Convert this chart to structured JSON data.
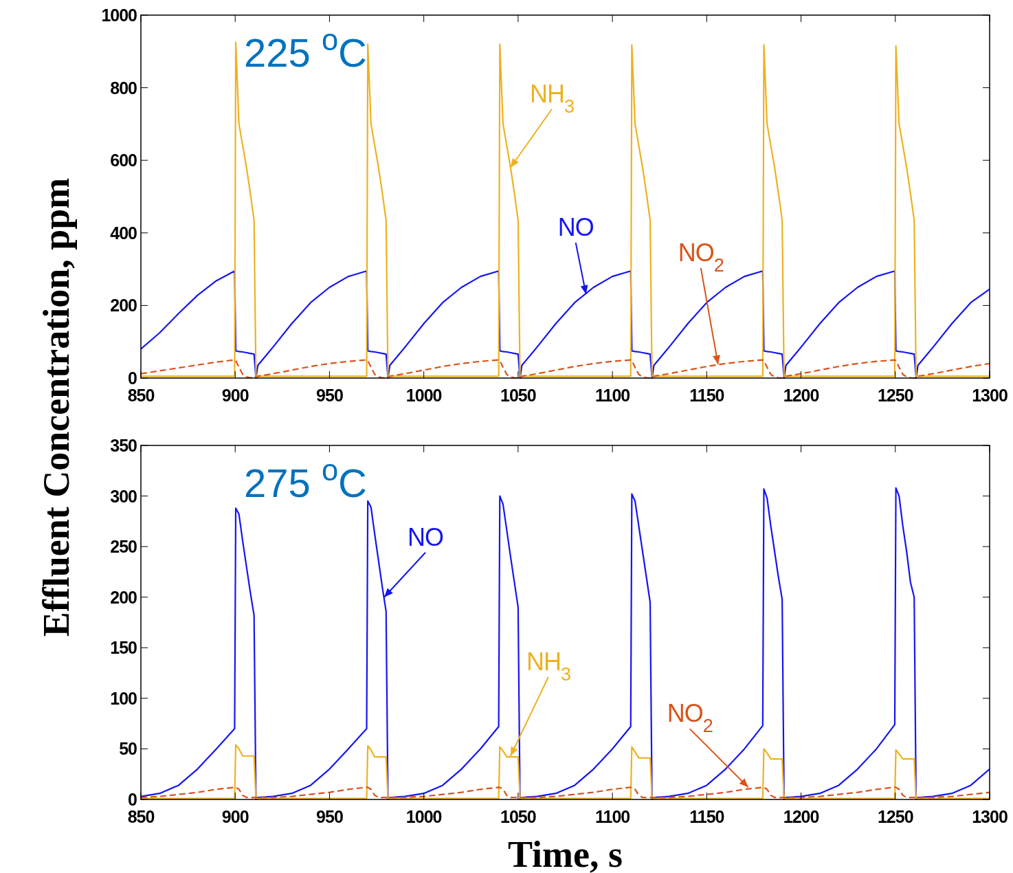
{
  "chart_data": [
    {
      "type": "line",
      "ylabel": "Effluent Concentration, ppm",
      "xlim": [
        850,
        1300
      ],
      "xticks": [
        850,
        900,
        950,
        1000,
        1050,
        1100,
        1150,
        1200,
        1250,
        1300
      ],
      "ylim": [
        0,
        1000
      ],
      "yticks": [
        0,
        200,
        400,
        600,
        800,
        1000
      ],
      "grid": false,
      "x": [
        850,
        860,
        870,
        880,
        890,
        899.7,
        900.3,
        902,
        904,
        906,
        908,
        910,
        911,
        912,
        920,
        930,
        940,
        950,
        960,
        969.7,
        970.3,
        972,
        974,
        976,
        978,
        980,
        981,
        982,
        990,
        1000,
        1010,
        1020,
        1030,
        1039.7,
        1040.3,
        1042,
        1044,
        1046,
        1048,
        1050,
        1051,
        1052,
        1060,
        1070,
        1080,
        1090,
        1100,
        1109.7,
        1110.3,
        1112,
        1114,
        1116,
        1118,
        1120,
        1121,
        1122,
        1130,
        1140,
        1150,
        1160,
        1170,
        1179.7,
        1180.3,
        1182,
        1184,
        1186,
        1188,
        1190,
        1191,
        1192,
        1200,
        1210,
        1220,
        1230,
        1240,
        1249.7,
        1250.3,
        1252,
        1254,
        1256,
        1258,
        1260,
        1261,
        1262,
        1270,
        1280,
        1290,
        1300
      ],
      "series": [
        {
          "color": "#1515f0",
          "line_style": "solid",
          "values": [
            80,
            125,
            178,
            228,
            268,
            295,
            75,
            73,
            72,
            70,
            68,
            66,
            0,
            35,
            85,
            150,
            208,
            250,
            280,
            295,
            75,
            73,
            72,
            70,
            68,
            66,
            0,
            35,
            85,
            150,
            208,
            250,
            280,
            295,
            75,
            73,
            72,
            70,
            68,
            66,
            0,
            35,
            85,
            150,
            208,
            250,
            280,
            295,
            75,
            73,
            72,
            70,
            68,
            66,
            0,
            35,
            85,
            150,
            208,
            250,
            280,
            295,
            75,
            73,
            72,
            70,
            68,
            66,
            0,
            35,
            85,
            150,
            208,
            250,
            280,
            295,
            75,
            73,
            72,
            70,
            68,
            66,
            0,
            35,
            85,
            150,
            208,
            245
          ]
        },
        {
          "color": "#edb120",
          "line_style": "solid",
          "values": [
            5,
            5,
            5,
            5,
            5,
            5,
            925,
            700,
            640,
            580,
            510,
            435,
            5,
            5,
            5,
            5,
            5,
            5,
            5,
            5,
            920,
            700,
            640,
            580,
            510,
            435,
            5,
            5,
            5,
            5,
            5,
            5,
            5,
            5,
            920,
            700,
            640,
            580,
            510,
            435,
            5,
            5,
            5,
            5,
            5,
            5,
            5,
            5,
            918,
            700,
            640,
            580,
            510,
            435,
            5,
            5,
            5,
            5,
            5,
            5,
            5,
            5,
            918,
            700,
            640,
            580,
            510,
            435,
            5,
            5,
            5,
            5,
            5,
            5,
            5,
            5,
            915,
            700,
            640,
            580,
            510,
            435,
            5,
            5,
            5,
            5,
            5,
            5
          ]
        },
        {
          "color": "#d95319",
          "line_style": "dashed",
          "values": [
            12,
            20,
            28,
            36,
            44,
            50,
            48,
            30,
            10,
            3,
            1,
            0,
            0,
            5,
            12,
            22,
            32,
            40,
            46,
            50,
            48,
            30,
            10,
            3,
            1,
            0,
            0,
            5,
            12,
            22,
            32,
            40,
            46,
            50,
            48,
            30,
            10,
            3,
            1,
            0,
            0,
            5,
            12,
            22,
            32,
            40,
            46,
            50,
            48,
            30,
            10,
            3,
            1,
            0,
            0,
            5,
            12,
            22,
            32,
            40,
            46,
            50,
            48,
            30,
            10,
            3,
            1,
            0,
            0,
            5,
            12,
            22,
            32,
            40,
            46,
            50,
            48,
            30,
            10,
            3,
            1,
            0,
            0,
            5,
            12,
            22,
            32,
            40
          ]
        }
      ],
      "annotations": [
        "225 $^{o}$C",
        {
          "text": "NH$_{3}$",
          "x": 1046,
          "y": 580
        },
        {
          "text": "NO",
          "x": 1086,
          "y": 231
        },
        {
          "text": "NO$_{2}$",
          "x": 1156,
          "y": 38
        }
      ]
    },
    {
      "type": "line",
      "xlabel": "Time, s",
      "xlim": [
        850,
        1300
      ],
      "xticks": [
        850,
        900,
        950,
        1000,
        1050,
        1100,
        1150,
        1200,
        1250,
        1300
      ],
      "ylim": [
        0,
        350
      ],
      "yticks": [
        0,
        50,
        100,
        150,
        200,
        250,
        300,
        350
      ],
      "grid": false,
      "x": [
        850,
        860,
        870,
        880,
        890,
        899.7,
        900.3,
        902,
        904,
        906,
        908,
        910,
        911,
        912,
        920,
        930,
        940,
        950,
        960,
        969.7,
        970.3,
        972,
        974,
        976,
        978,
        980,
        981,
        982,
        990,
        1000,
        1010,
        1020,
        1030,
        1039.7,
        1040.3,
        1042,
        1044,
        1046,
        1048,
        1050,
        1051,
        1052,
        1060,
        1070,
        1080,
        1090,
        1100,
        1109.7,
        1110.3,
        1112,
        1114,
        1116,
        1118,
        1120,
        1121,
        1122,
        1130,
        1140,
        1150,
        1160,
        1170,
        1179.7,
        1180.3,
        1182,
        1184,
        1186,
        1188,
        1190,
        1191,
        1192,
        1200,
        1210,
        1220,
        1230,
        1240,
        1249.7,
        1250.3,
        1252,
        1254,
        1256,
        1258,
        1260,
        1261,
        1262,
        1270,
        1280,
        1290,
        1300
      ],
      "series": [
        {
          "color": "#1515f0",
          "line_style": "solid",
          "values": [
            3,
            6,
            14,
            30,
            50,
            70,
            288,
            282,
            255,
            230,
            205,
            182,
            0,
            2,
            3,
            6,
            14,
            30,
            50,
            70,
            295,
            289,
            262,
            236,
            210,
            186,
            0,
            2,
            3,
            6,
            14,
            30,
            50,
            72,
            300,
            292,
            266,
            240,
            215,
            190,
            0,
            2,
            3,
            6,
            14,
            30,
            50,
            72,
            302,
            295,
            270,
            245,
            220,
            195,
            0,
            2,
            3,
            6,
            14,
            30,
            50,
            73,
            307,
            298,
            270,
            245,
            220,
            198,
            0,
            2,
            3,
            6,
            14,
            30,
            50,
            74,
            308,
            300,
            270,
            245,
            215,
            200,
            0,
            2,
            3,
            6,
            14,
            30
          ]
        },
        {
          "color": "#edb120",
          "line_style": "solid",
          "values": [
            1,
            1,
            1,
            1,
            1,
            1,
            54,
            50,
            43,
            43,
            43,
            43,
            1,
            1,
            1,
            1,
            1,
            1,
            1,
            1,
            53,
            49,
            42,
            42,
            42,
            42,
            1,
            1,
            1,
            1,
            1,
            1,
            1,
            1,
            52,
            48,
            42,
            42,
            42,
            42,
            1,
            1,
            1,
            1,
            1,
            1,
            1,
            1,
            52,
            47,
            41,
            41,
            41,
            41,
            1,
            1,
            1,
            1,
            1,
            1,
            1,
            1,
            50,
            46,
            40,
            40,
            40,
            40,
            1,
            1,
            1,
            1,
            1,
            1,
            1,
            1,
            49,
            45,
            40,
            40,
            40,
            40,
            1,
            1,
            1,
            1,
            1,
            1
          ]
        },
        {
          "color": "#d95319",
          "line_style": "dashed",
          "values": [
            2,
            3,
            5,
            7,
            10,
            12,
            12,
            10,
            4,
            2,
            2,
            2,
            2,
            2,
            2,
            3,
            5,
            7,
            10,
            12,
            12,
            10,
            4,
            2,
            2,
            2,
            2,
            2,
            2,
            3,
            5,
            7,
            10,
            12,
            12,
            10,
            4,
            2,
            2,
            2,
            2,
            2,
            2,
            3,
            5,
            7,
            10,
            12,
            12,
            10,
            4,
            2,
            2,
            2,
            2,
            2,
            2,
            3,
            5,
            7,
            10,
            12,
            12,
            10,
            4,
            2,
            2,
            2,
            2,
            2,
            2,
            3,
            5,
            7,
            10,
            12,
            12,
            10,
            4,
            2,
            2,
            2,
            2,
            2,
            2,
            3,
            5,
            7
          ]
        }
      ],
      "annotations": [
        "275 $^{o}$C",
        {
          "text": "NO",
          "x": 979,
          "y": 200
        },
        {
          "text": "NH$_{3}$",
          "x": 1046,
          "y": 43
        },
        {
          "text": "NO$_{2}$",
          "x": 1172,
          "y": 12
        }
      ]
    }
  ]
}
